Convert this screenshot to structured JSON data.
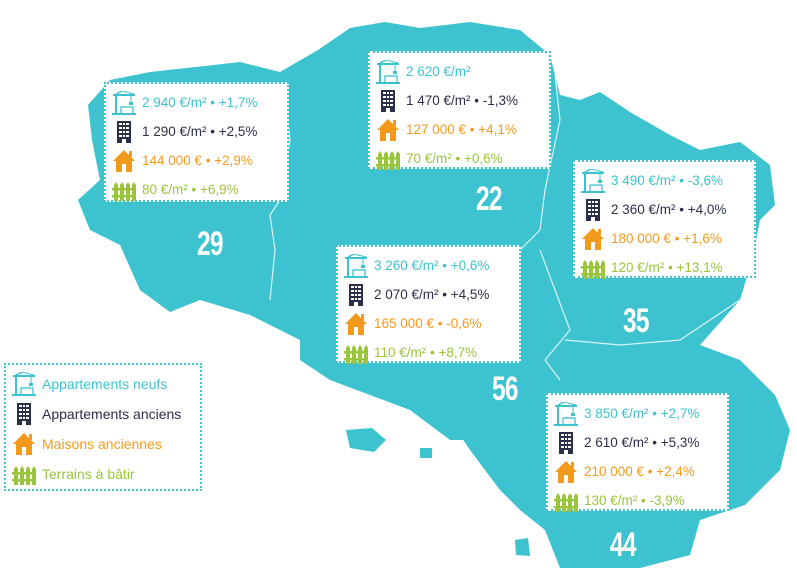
{
  "colors": {
    "map": "#3cc3cf",
    "new_apartments": "#3cc3cf",
    "old_apartments": "#2b2f4a",
    "houses": "#f39a1d",
    "land": "#9ac43c"
  },
  "departments": [
    {
      "number": "29"
    },
    {
      "number": "22"
    },
    {
      "number": "35"
    },
    {
      "number": "56"
    },
    {
      "number": "44"
    }
  ],
  "boxes": [
    {
      "dept": "29",
      "new": "2 940 €/m² • +1,7%",
      "old": "1 290 €/m² • +2,5%",
      "house": "144 000 € • +2,9%",
      "land": "80 €/m²  • +6,9%"
    },
    {
      "dept": "22",
      "new": "2 620 €/m²",
      "old": "1 470 €/m² • -1,3%",
      "house": "127 000 € • +4,1%",
      "land": "70 €/m²  • +0,6%"
    },
    {
      "dept": "35",
      "new": "3 490 €/m² • -3,6%",
      "old": "2 360 €/m² • +4,0%",
      "house": "180 000 € • +1,6%",
      "land": "120 €/m² • +13,1%"
    },
    {
      "dept": "56",
      "new": "3 260 €/m² • +0,6%",
      "old": "2 070 €/m² • +4,5%",
      "house": "165 000 € • -0,6%",
      "land": "110 €/m² • +8,7%"
    },
    {
      "dept": "44",
      "new": "3 850 €/m² • +2,7%",
      "old": "2 610 €/m² • +5,3%",
      "house": "210 000 € • +2,4%",
      "land": "130 €/m² • -3,9%"
    }
  ],
  "legend": {
    "new": "Appartements neufs",
    "old": "Appartements anciens",
    "house": "Maisons anciennes",
    "land": "Terrains à bâtir"
  },
  "icons": {
    "new": "crane-icon",
    "old": "building-icon",
    "house": "house-icon",
    "land": "fence-icon"
  }
}
